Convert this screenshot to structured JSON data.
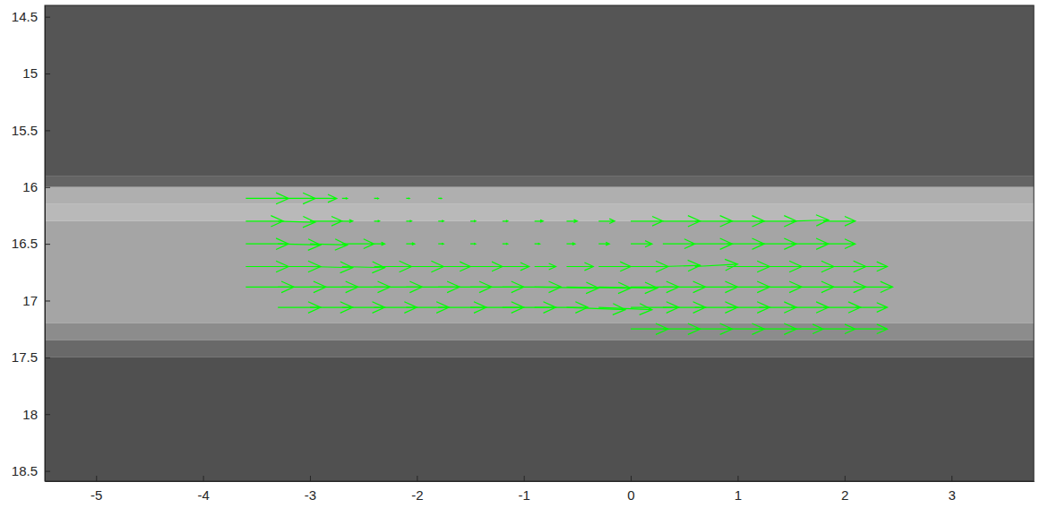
{
  "chart_data": {
    "type": "quiver",
    "color": "#00ff00",
    "xlim": [
      -5.48,
      3.77
    ],
    "ylim": [
      14.4,
      18.59
    ],
    "xticks": [
      -5,
      -4,
      -3,
      -2,
      -1,
      0,
      1,
      2,
      3
    ],
    "yticks": [
      14.5,
      15,
      15.5,
      16,
      16.5,
      17,
      17.5,
      18,
      18.5
    ],
    "background": {
      "y": [
        14.4,
        15.9,
        16.0,
        16.15,
        16.3,
        17.2,
        17.35,
        17.5,
        18.59
      ],
      "gray": [
        85,
        100,
        175,
        185,
        165,
        140,
        105,
        80
      ]
    },
    "x": [
      -3.6,
      -3.3,
      -3.0,
      -2.7,
      -2.4,
      -2.1,
      -1.8,
      -3.6,
      -3.3,
      -3.0,
      -2.7,
      -2.4,
      -2.1,
      -1.8,
      -1.5,
      -1.2,
      -0.9,
      -0.6,
      -0.3,
      0,
      0.3,
      0.6,
      0.9,
      1.2,
      1.5,
      1.8,
      -3.6,
      -3.3,
      -3.0,
      -2.7,
      -2.4,
      -2.1,
      -1.8,
      -1.5,
      -1.2,
      -0.9,
      -0.6,
      -0.3,
      0,
      0.3,
      0.6,
      0.9,
      1.2,
      1.5,
      1.8,
      -3.6,
      -3.3,
      -3.0,
      -2.7,
      -2.4,
      -2.1,
      -1.8,
      -1.5,
      -1.2,
      -0.9,
      -0.6,
      -0.3,
      0,
      0.3,
      0.6,
      0.9,
      1.2,
      1.5,
      1.8,
      2.1,
      -3.6,
      -3.3,
      -3.0,
      -2.7,
      -2.4,
      -2.1,
      -1.8,
      -1.5,
      -1.2,
      -0.9,
      -0.6,
      -0.3,
      0,
      0.3,
      0.6,
      0.9,
      1.2,
      1.5,
      1.8,
      2.1,
      -3.3,
      -3.0,
      -2.7,
      -2.4,
      -2.1,
      -1.8,
      -1.5,
      -1.2,
      -0.9,
      -0.6,
      -0.3,
      0,
      0.3,
      0.6,
      0.9,
      1.2,
      1.5,
      1.8,
      2.1,
      0,
      0.3,
      0.6,
      0.9,
      1.2,
      1.5,
      1.8,
      2.1
    ],
    "y": [
      16.1,
      16.1,
      16.1,
      16.1,
      16.1,
      16.1,
      16.1,
      16.3,
      16.3,
      16.3,
      16.3,
      16.3,
      16.3,
      16.3,
      16.3,
      16.3,
      16.3,
      16.3,
      16.3,
      16.3,
      16.3,
      16.3,
      16.3,
      16.3,
      16.3,
      16.3,
      16.5,
      16.5,
      16.5,
      16.5,
      16.5,
      16.5,
      16.5,
      16.5,
      16.5,
      16.5,
      16.5,
      16.5,
      16.5,
      16.5,
      16.5,
      16.5,
      16.5,
      16.5,
      16.5,
      16.7,
      16.7,
      16.7,
      16.7,
      16.7,
      16.7,
      16.7,
      16.7,
      16.7,
      16.7,
      16.7,
      16.7,
      16.7,
      16.7,
      16.7,
      16.7,
      16.7,
      16.7,
      16.7,
      16.7,
      16.88,
      16.88,
      16.88,
      16.88,
      16.88,
      16.88,
      16.88,
      16.88,
      16.88,
      16.88,
      16.88,
      16.88,
      16.88,
      16.88,
      16.88,
      16.88,
      16.88,
      16.88,
      16.88,
      16.88,
      17.06,
      17.06,
      17.06,
      17.06,
      17.06,
      17.06,
      17.06,
      17.06,
      17.06,
      17.06,
      17.06,
      17.06,
      17.06,
      17.06,
      17.06,
      17.06,
      17.06,
      17.06,
      17.06,
      17.25,
      17.25,
      17.25,
      17.25,
      17.25,
      17.25,
      17.25,
      17.25
    ],
    "u": [
      0.4,
      0.35,
      0.25,
      0.05,
      0.04,
      0.03,
      0.03,
      0.35,
      0.35,
      0.3,
      0.1,
      0.05,
      0.05,
      0.05,
      0.05,
      0.05,
      0.08,
      0.1,
      0.15,
      0.3,
      0.35,
      0.35,
      0.35,
      0.35,
      0.35,
      0.3,
      0.4,
      0.4,
      0.35,
      0.3,
      0.1,
      0.08,
      0.05,
      0.05,
      0.05,
      0.05,
      0.08,
      0.1,
      0.2,
      0.3,
      0.35,
      0.35,
      0.35,
      0.35,
      0.3,
      0.4,
      0.4,
      0.4,
      0.4,
      0.35,
      0.35,
      0.3,
      0.3,
      0.25,
      0.2,
      0.25,
      0.3,
      0.35,
      0.35,
      0.4,
      0.4,
      0.4,
      0.4,
      0.4,
      0.3,
      0.45,
      0.45,
      0.45,
      0.45,
      0.45,
      0.5,
      0.5,
      0.5,
      0.55,
      0.6,
      0.6,
      0.55,
      0.45,
      0.4,
      0.4,
      0.4,
      0.4,
      0.4,
      0.4,
      0.35,
      0.4,
      0.4,
      0.4,
      0.4,
      0.4,
      0.45,
      0.5,
      0.5,
      0.5,
      0.55,
      0.5,
      0.45,
      0.4,
      0.4,
      0.4,
      0.35,
      0.35,
      0.35,
      0.3,
      0.35,
      0.35,
      0.35,
      0.35,
      0.35,
      0.3,
      0.3,
      0.3
    ],
    "v": [
      0,
      0,
      0,
      0,
      0,
      0,
      0,
      0,
      0.01,
      0,
      0,
      0,
      0,
      0,
      0,
      0,
      0,
      0,
      0,
      0,
      0,
      0,
      0,
      0,
      -0.01,
      0,
      0,
      0.01,
      0.01,
      0,
      0,
      0,
      0,
      0,
      0,
      0,
      0,
      0,
      0,
      0,
      0,
      0,
      0,
      0,
      0,
      0,
      0,
      0.01,
      0.01,
      0,
      0,
      0,
      0,
      0,
      0,
      0,
      0,
      0,
      -0.01,
      -0.02,
      0,
      0,
      0,
      0,
      0,
      0,
      0,
      0,
      0,
      0,
      0,
      0,
      0,
      0,
      0.01,
      0.01,
      0.01,
      0,
      0,
      0,
      0,
      0,
      0,
      0,
      0,
      0,
      0,
      0,
      0,
      0,
      0,
      0,
      0,
      0,
      0.02,
      0.02,
      0,
      0,
      0,
      0,
      0,
      0,
      0,
      0,
      0,
      0,
      0,
      0,
      0,
      0,
      0,
      0
    ]
  }
}
